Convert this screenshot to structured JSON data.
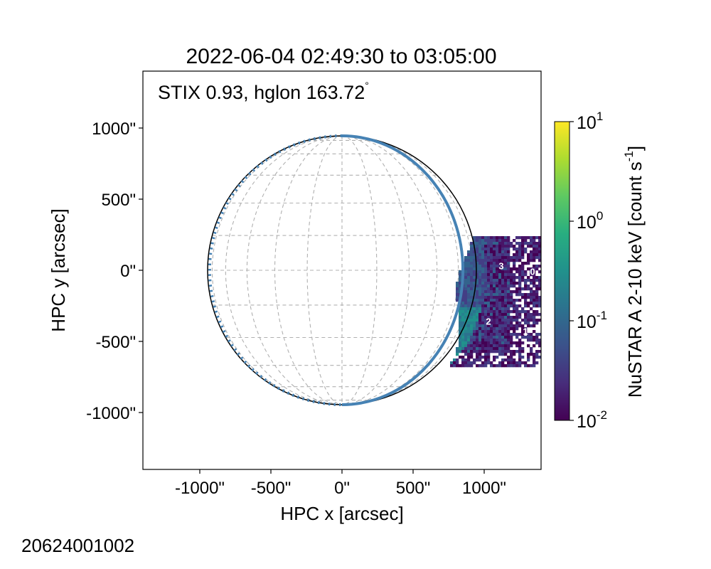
{
  "chart_data": {
    "type": "heatmap",
    "title": "2022-06-04 02:49:30 to 03:05:00",
    "xlabel": "HPC x [arcsec]",
    "ylabel": "HPC y [arcsec]",
    "xlim": [
      -1400,
      1400
    ],
    "ylim": [
      -1400,
      1400
    ],
    "x_ticks": [
      {
        "value": -1000,
        "label": "-1000\""
      },
      {
        "value": -500,
        "label": "-500\""
      },
      {
        "value": 0,
        "label": "0\""
      },
      {
        "value": 500,
        "label": "500\""
      },
      {
        "value": 1000,
        "label": "1000\""
      }
    ],
    "y_ticks": [
      {
        "value": 1000,
        "label": "1000\""
      },
      {
        "value": 500,
        "label": "500\""
      },
      {
        "value": 0,
        "label": "0\""
      },
      {
        "value": -500,
        "label": "-500\""
      },
      {
        "value": -1000,
        "label": "-1000\""
      }
    ],
    "solar_limb_radius_arcsec": 945,
    "grid": true,
    "annotation": {
      "text": "STIX 0.93, hglon 163.72",
      "degree_symbol": "°",
      "color": "#4682b4"
    },
    "stix_limb": {
      "color": "#4682b4",
      "visible_arc": "solid",
      "hidden_arc": "dotted"
    },
    "colorbar": {
      "label": "NuSTAR A 2-10 keV [count s",
      "label_exponent": "-1",
      "label_close": "]",
      "scale": "log",
      "range": [
        0.01,
        10
      ],
      "ticks": [
        {
          "base": "10",
          "exp": "1",
          "value": 10
        },
        {
          "base": "10",
          "exp": "0",
          "value": 1
        },
        {
          "base": "10",
          "exp": "-1",
          "value": 0.1
        },
        {
          "base": "10",
          "exp": "-2",
          "value": 0.01
        }
      ],
      "colormap": "viridis"
    },
    "regions": [
      {
        "label": "3",
        "x": 1120,
        "y": 25
      },
      {
        "label": "0",
        "x": 1340,
        "y": -15
      },
      {
        "label": "2",
        "x": 1030,
        "y": -365
      },
      {
        "label": "1",
        "x": 1290,
        "y": -435
      }
    ],
    "nustar_map_extent": {
      "x": [
        740,
        1400
      ],
      "y": [
        -670,
        240
      ]
    }
  },
  "footer": {
    "obs_id": "20624001002"
  },
  "colors": {
    "stix": "#4682b4",
    "grid": "#b0b0b0",
    "limb": "#000000"
  }
}
